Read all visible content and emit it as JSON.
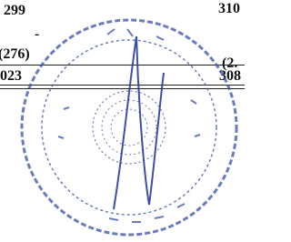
{
  "table": {
    "rows": [
      {
        "left": "299",
        "right": "310"
      },
      {
        "left": "-"
      },
      {
        "left": "(276)",
        "right": "(2."
      },
      {
        "left": "023",
        "right": "308"
      }
    ]
  }
}
